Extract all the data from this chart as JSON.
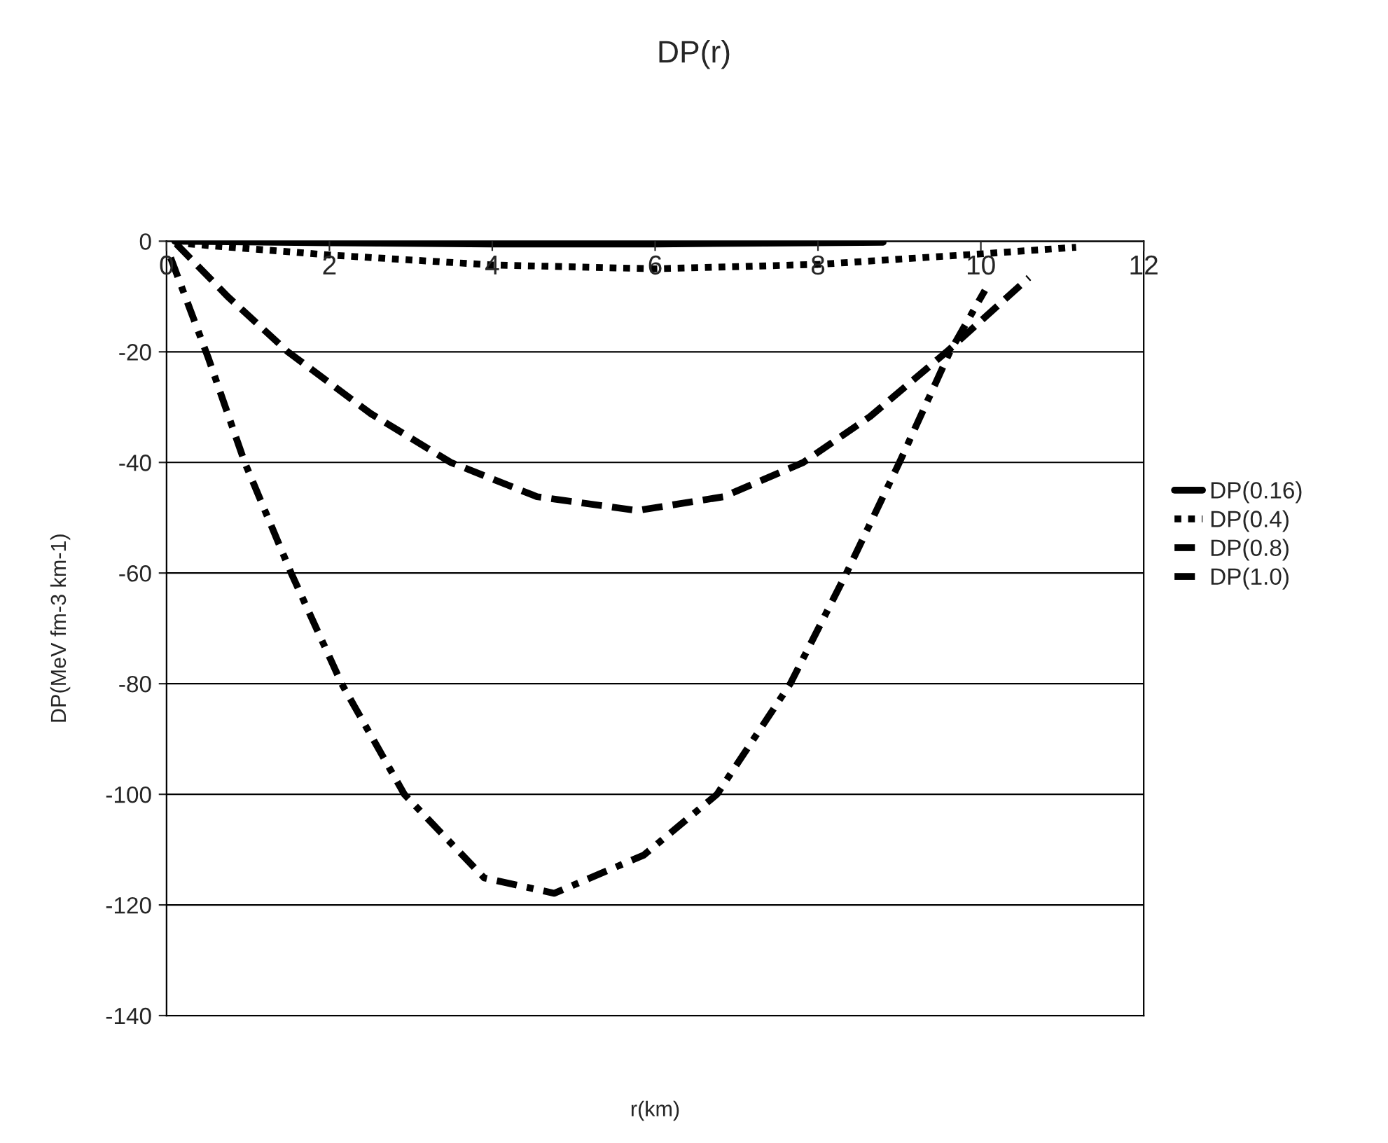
{
  "chart_data": {
    "type": "line",
    "title": "DP(r)",
    "xlabel": "r(km)",
    "ylabel": "DP(MeV fm-3 km-1)",
    "xlim": [
      0,
      12
    ],
    "ylim": [
      -140,
      0
    ],
    "xticks": [
      0,
      2,
      4,
      6,
      8,
      10,
      12
    ],
    "yticks": [
      -140,
      -120,
      -100,
      -80,
      -60,
      -40,
      -20,
      0
    ],
    "grid": "y",
    "legend": "right",
    "marker": "none",
    "series": [
      {
        "name": "DP(0.16)",
        "color": "#000000",
        "line_style": "solid",
        "x": [
          0.1,
          2,
          4,
          6,
          8,
          8.8
        ],
        "values": [
          0,
          -0.3,
          -0.5,
          -0.5,
          -0.3,
          -0.2
        ]
      },
      {
        "name": "DP(0.4)",
        "color": "#000000",
        "line_style": "dotted",
        "x": [
          0.1,
          2,
          4,
          6,
          8,
          10,
          11.17
        ],
        "values": [
          -0.3,
          -2.5,
          -4.3,
          -5,
          -4.2,
          -2.3,
          -1.1
        ]
      },
      {
        "name": "DP(0.8)",
        "color": "#000000",
        "line_style": "dashed",
        "x": [
          0.12,
          0.75,
          1.49,
          2.51,
          3.49,
          4.55,
          5.78,
          6.84,
          7.82,
          8.64,
          9.58,
          10.59
        ],
        "values": [
          -0.5,
          -10,
          -20,
          -31.2,
          -40,
          -46.2,
          -48.7,
          -46.2,
          -40,
          -31.7,
          -20,
          -6.6
        ]
      },
      {
        "name": "DP(1.0)",
        "color": "#000000",
        "line_style": "dashdot",
        "x": [
          0.05,
          0.51,
          0.96,
          1.53,
          2.15,
          2.92,
          3.9,
          4.76,
          5.86,
          6.76,
          7.66,
          8.35,
          9.0,
          9.62,
          10.05
        ],
        "values": [
          -3,
          -21,
          -40,
          -60,
          -80,
          -100,
          -115.1,
          -117.9,
          -111,
          -100,
          -80,
          -60,
          -40,
          -20,
          -8.9
        ]
      }
    ]
  }
}
